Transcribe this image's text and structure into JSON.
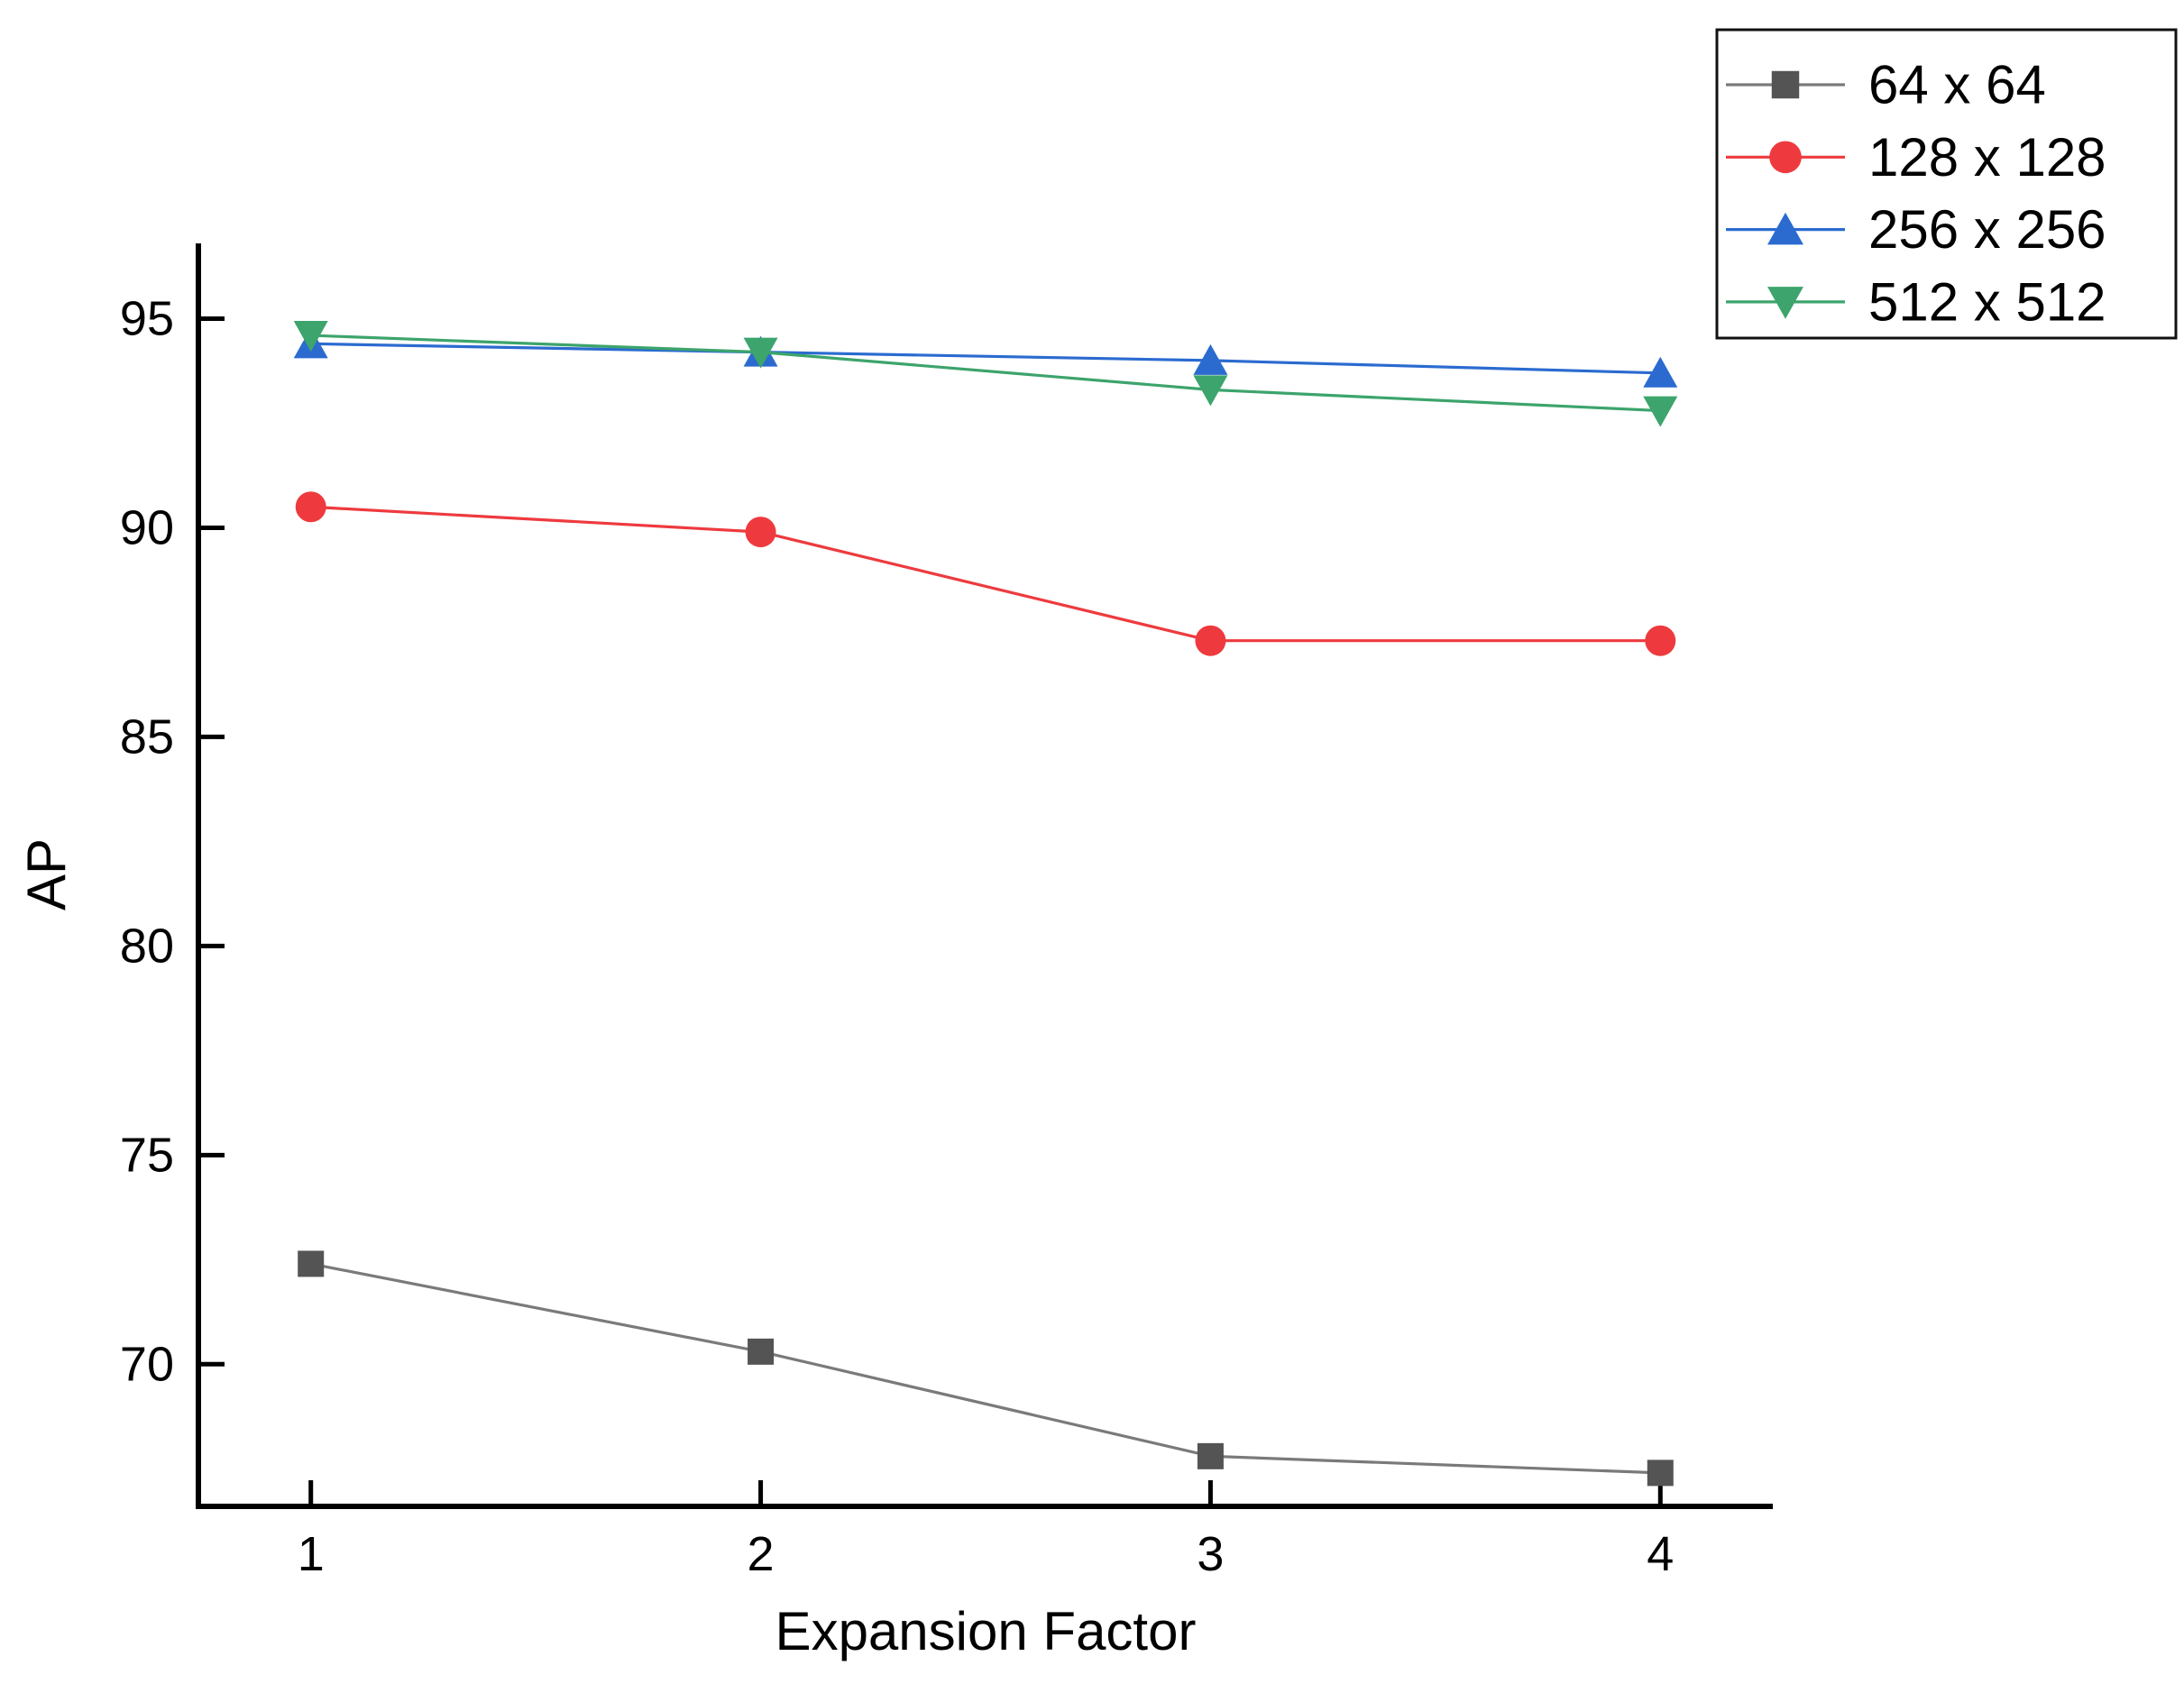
{
  "chart_data": {
    "type": "line",
    "title": "",
    "xlabel": "Expansion Factor",
    "ylabel": "AP",
    "x": [
      1,
      2,
      3,
      4
    ],
    "x_ticks": [
      1,
      2,
      3,
      4
    ],
    "y_ticks": [
      95,
      90,
      85,
      80,
      75,
      70
    ],
    "xlim": [
      0.75,
      4.25
    ],
    "ylim": [
      66.6,
      96.8
    ],
    "grid": false,
    "legend_position": "top-right",
    "axis_color": "#000000",
    "background_color": "#ffffff",
    "series": [
      {
        "name": "64 x 64",
        "marker": "square",
        "color": "#545454",
        "line_color": "#7a7a7a",
        "values": [
          72.4,
          70.3,
          67.8,
          67.4
        ]
      },
      {
        "name": "128 x 128",
        "marker": "circle",
        "color": "#ee3a3e",
        "line_color": "#ee3a3e",
        "values": [
          90.5,
          89.9,
          87.3,
          87.3
        ]
      },
      {
        "name": "256 x 256",
        "marker": "triangle-up",
        "color": "#2b6bd0",
        "line_color": "#2b6bd0",
        "values": [
          94.4,
          94.2,
          94.0,
          93.7
        ]
      },
      {
        "name": "512 x 512",
        "marker": "triangle-down",
        "color": "#3ca46c",
        "line_color": "#3ca46c",
        "values": [
          94.6,
          94.2,
          93.3,
          92.8
        ]
      }
    ]
  }
}
